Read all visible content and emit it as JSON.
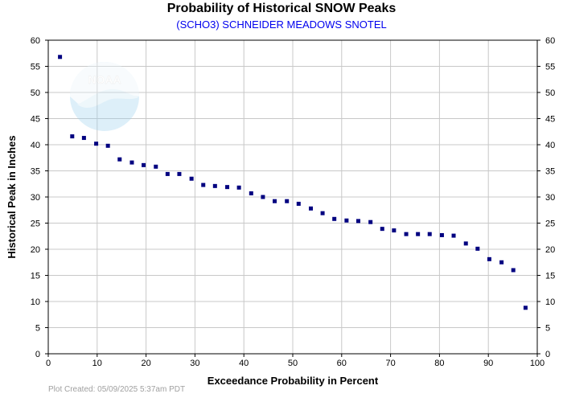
{
  "chart_data": {
    "type": "scatter",
    "title": "Probability of Historical SNOW Peaks",
    "subtitle": "(SCHO3) SCHNEIDER MEADOWS SNOTEL",
    "xlabel": "Exceedance Probability in Percent",
    "ylabel": "Historical Peak in Inches",
    "xlim": [
      0,
      100
    ],
    "ylim": [
      0,
      60
    ],
    "xticks": [
      0,
      10,
      20,
      30,
      40,
      50,
      60,
      70,
      80,
      90,
      100
    ],
    "yticks": [
      0,
      5,
      10,
      15,
      20,
      25,
      30,
      35,
      40,
      45,
      50,
      55,
      60
    ],
    "grid": true,
    "marker_color": "#000080",
    "points": [
      {
        "x": 2.4,
        "y": 56.8
      },
      {
        "x": 4.9,
        "y": 41.6
      },
      {
        "x": 7.3,
        "y": 41.3
      },
      {
        "x": 9.8,
        "y": 40.2
      },
      {
        "x": 12.2,
        "y": 39.8
      },
      {
        "x": 14.6,
        "y": 37.2
      },
      {
        "x": 17.1,
        "y": 36.6
      },
      {
        "x": 19.5,
        "y": 36.1
      },
      {
        "x": 22.0,
        "y": 35.8
      },
      {
        "x": 24.4,
        "y": 34.4
      },
      {
        "x": 26.8,
        "y": 34.4
      },
      {
        "x": 29.3,
        "y": 33.5
      },
      {
        "x": 31.7,
        "y": 32.3
      },
      {
        "x": 34.1,
        "y": 32.1
      },
      {
        "x": 36.6,
        "y": 31.9
      },
      {
        "x": 39.0,
        "y": 31.8
      },
      {
        "x": 41.5,
        "y": 30.7
      },
      {
        "x": 43.9,
        "y": 30.0
      },
      {
        "x": 46.3,
        "y": 29.2
      },
      {
        "x": 48.8,
        "y": 29.2
      },
      {
        "x": 51.2,
        "y": 28.7
      },
      {
        "x": 53.7,
        "y": 27.8
      },
      {
        "x": 56.1,
        "y": 26.9
      },
      {
        "x": 58.5,
        "y": 25.8
      },
      {
        "x": 61.0,
        "y": 25.5
      },
      {
        "x": 63.4,
        "y": 25.4
      },
      {
        "x": 65.9,
        "y": 25.2
      },
      {
        "x": 68.3,
        "y": 23.9
      },
      {
        "x": 70.7,
        "y": 23.6
      },
      {
        "x": 73.2,
        "y": 22.9
      },
      {
        "x": 75.6,
        "y": 22.9
      },
      {
        "x": 78.0,
        "y": 22.9
      },
      {
        "x": 80.5,
        "y": 22.7
      },
      {
        "x": 82.9,
        "y": 22.6
      },
      {
        "x": 85.4,
        "y": 21.1
      },
      {
        "x": 87.8,
        "y": 20.1
      },
      {
        "x": 90.2,
        "y": 18.1
      },
      {
        "x": 92.7,
        "y": 17.5
      },
      {
        "x": 95.1,
        "y": 16.0
      },
      {
        "x": 97.6,
        "y": 8.8
      }
    ]
  },
  "watermark": {
    "text": "NOAA"
  },
  "footer": {
    "plot_created": "Plot Created: 05/09/2025 5:37am PDT"
  }
}
